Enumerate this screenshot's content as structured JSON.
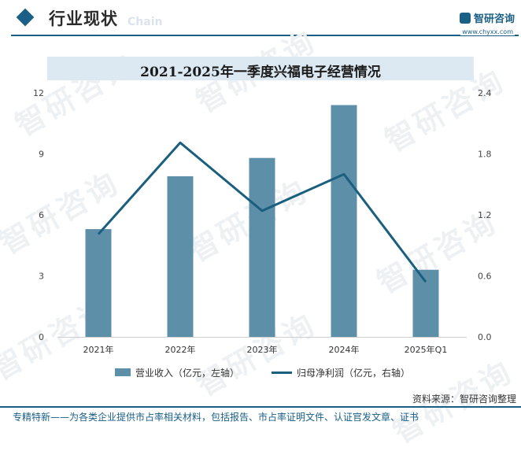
{
  "header": {
    "title": "行业现状",
    "title_en": "Chain",
    "brand": "智研咨询",
    "url": "www.chyxx.com"
  },
  "watermark_text": "智研咨询",
  "colors": {
    "accent": "#1a5f86",
    "bar": "#5e8fa8",
    "line": "#1a5f7e",
    "title_bg": "#dde9f2"
  },
  "chart_data": {
    "type": "bar",
    "title": "2021-2025年一季度兴福电子经营情况",
    "categories": [
      "2021年",
      "2022年",
      "2023年",
      "2024年",
      "2025年Q1"
    ],
    "series": [
      {
        "name": "营业收入（亿元，左轴）",
        "type": "bar",
        "axis": "left",
        "values": [
          5.3,
          7.9,
          8.8,
          11.4,
          3.3
        ]
      },
      {
        "name": "归母净利润（亿元，右轴）",
        "type": "line",
        "axis": "right",
        "values": [
          1.01,
          1.91,
          1.24,
          1.6,
          0.54
        ]
      }
    ],
    "y_left": {
      "min": 0,
      "max": 12,
      "ticks": [
        "0",
        "3",
        "6",
        "9",
        "12"
      ]
    },
    "y_right": {
      "min": 0,
      "max": 2.4,
      "ticks": [
        "0.0",
        "0.6",
        "1.2",
        "1.8",
        "2.4"
      ]
    },
    "grid": false,
    "legend_position": "bottom"
  },
  "source": "资料来源：智研咨询整理",
  "footer": "专精特新——为各类企业提供市占率相关材料，包括报告、市占率证明文件、认证官发文章、证书"
}
